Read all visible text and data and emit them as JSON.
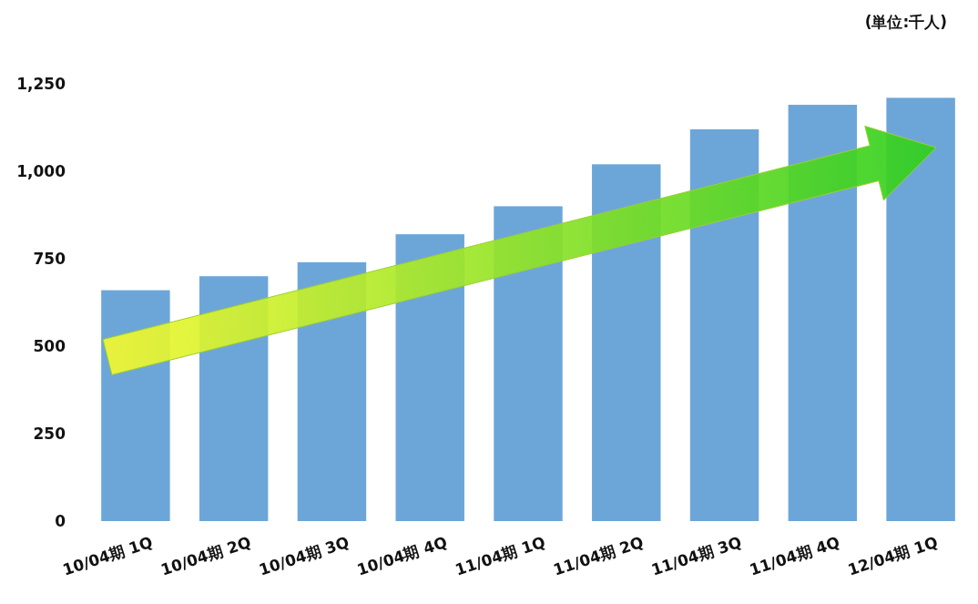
{
  "chart_data": {
    "type": "bar",
    "categories": [
      "10/04期 1Q",
      "10/04期 2Q",
      "10/04期 3Q",
      "10/04期 4Q",
      "11/04期 1Q",
      "11/04期 2Q",
      "11/04期 3Q",
      "11/04期 4Q",
      "12/04期 1Q"
    ],
    "values": [
      660,
      700,
      740,
      820,
      900,
      1020,
      1120,
      1190,
      1210
    ],
    "color": "#6ca6d9",
    "ylim": [
      0,
      1250
    ],
    "yticks": [
      0,
      250,
      500,
      750,
      {
        "value": 1000,
        "label": "1,000"
      },
      {
        "value": 1250,
        "label": "1,250"
      }
    ],
    "annotations": [
      "(単位:千人)"
    ],
    "grid": false
  }
}
